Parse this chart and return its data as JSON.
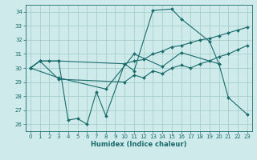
{
  "bg_color": "#ceeaea",
  "grid_color": "#a0c8c8",
  "line_color": "#1a6b6b",
  "xlabel": "Humidex (Indice chaleur)",
  "ylim": [
    25.5,
    34.5
  ],
  "xlim": [
    -0.5,
    23.5
  ],
  "yticks": [
    26,
    27,
    28,
    29,
    30,
    31,
    32,
    33,
    34
  ],
  "xticks": [
    0,
    1,
    2,
    3,
    4,
    5,
    6,
    7,
    8,
    9,
    10,
    11,
    12,
    13,
    14,
    15,
    16,
    17,
    18,
    19,
    20,
    21,
    22,
    23
  ],
  "series1_x": [
    0,
    1,
    3,
    4,
    5,
    6,
    7,
    8,
    10,
    11,
    13,
    15,
    16,
    19,
    20,
    21,
    23
  ],
  "series1_y": [
    30.0,
    30.5,
    30.5,
    26.3,
    26.4,
    26.0,
    28.3,
    26.6,
    30.3,
    29.8,
    34.1,
    34.2,
    33.5,
    31.9,
    30.3,
    27.9,
    26.7
  ],
  "series2_x": [
    0,
    3,
    8,
    11,
    14,
    16,
    20
  ],
  "series2_y": [
    30.0,
    29.3,
    28.5,
    31.0,
    30.1,
    31.1,
    30.3
  ],
  "series3_x": [
    0,
    1,
    2,
    3,
    10,
    11,
    12,
    13,
    14,
    15,
    16,
    17,
    18,
    19,
    20,
    21,
    22,
    23
  ],
  "series3_y": [
    30.0,
    30.5,
    30.5,
    30.5,
    30.3,
    30.5,
    30.6,
    31.0,
    31.2,
    31.5,
    31.6,
    31.8,
    32.0,
    32.1,
    32.3,
    32.5,
    32.7,
    32.9
  ],
  "series4_x": [
    0,
    1,
    3,
    10,
    11,
    12,
    13,
    14,
    15,
    16,
    17,
    18,
    19,
    20,
    21,
    22,
    23
  ],
  "series4_y": [
    30.0,
    30.5,
    29.2,
    29.0,
    29.5,
    29.3,
    29.8,
    29.6,
    30.0,
    30.2,
    30.0,
    30.3,
    30.5,
    30.8,
    31.0,
    31.3,
    31.6
  ]
}
